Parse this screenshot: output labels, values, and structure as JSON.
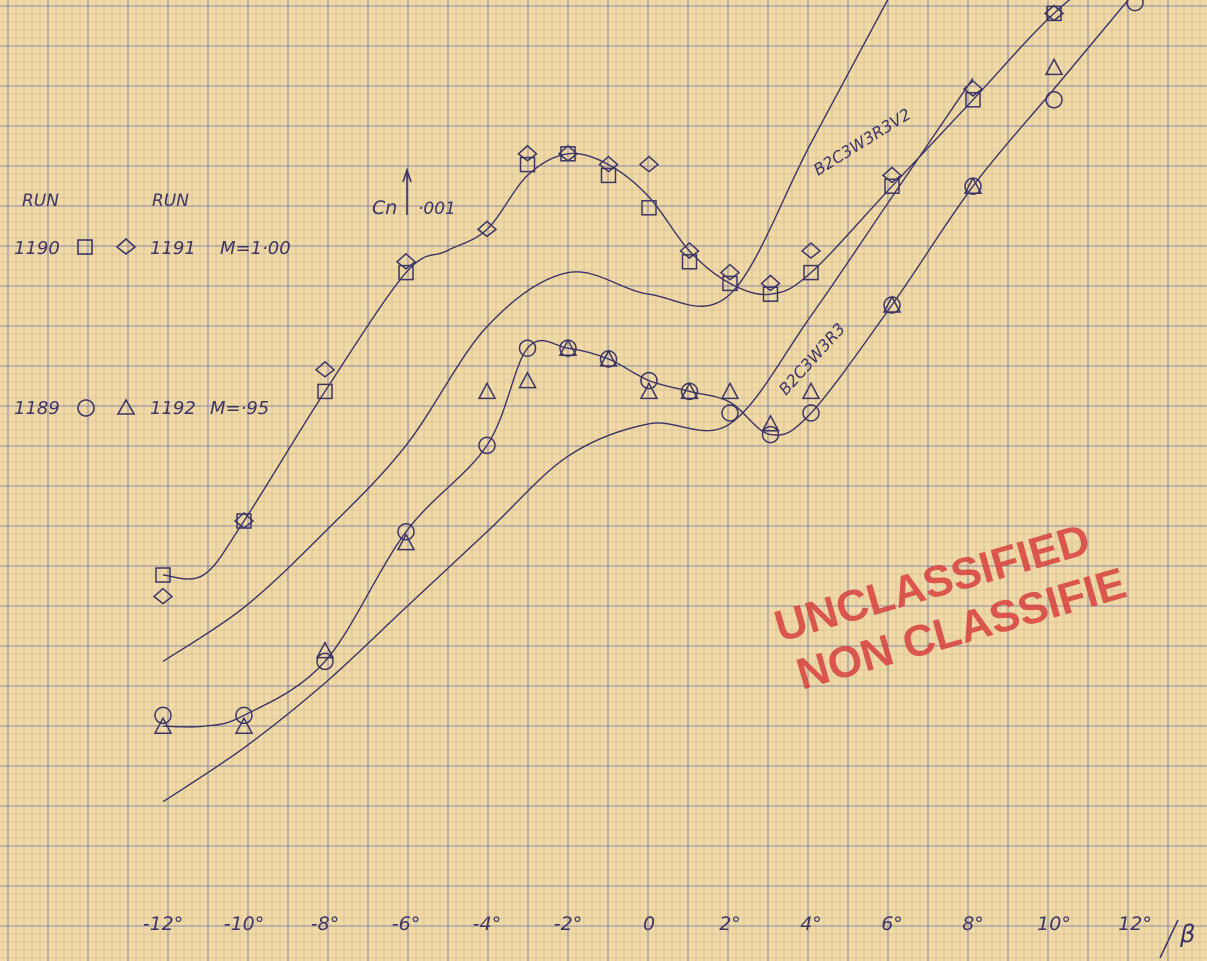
{
  "chart_data": {
    "type": "line",
    "x_tick_labels": [
      "-12°",
      "-10°",
      "-8°",
      "-6°",
      "-4°",
      "-2°",
      "0",
      "2°",
      "4°",
      "6°",
      "8°",
      "10°",
      "12°"
    ],
    "x_ticks": [
      -12,
      -10,
      -8,
      -6,
      -4,
      -2,
      0,
      2,
      4,
      6,
      8,
      10,
      12
    ],
    "xlabel": "β",
    "ylabel": "Cn",
    "ylabel_scale": "·001",
    "grid": true,
    "legend": [
      {
        "run_a": "1190",
        "marker_a": "square",
        "run_b": "1191",
        "marker_b": "diamond",
        "condition": "M=1·00"
      },
      {
        "run_a": "1189",
        "marker_a": "circle",
        "run_b": "1192",
        "marker_b": "triangle",
        "condition": "M=·95"
      }
    ],
    "legend_header_a": "RUN",
    "legend_header_b": "RUN",
    "curve_labels": [
      "B2C3W3R3V2",
      "B2C3W3R3"
    ],
    "series": [
      {
        "marker": "square",
        "condition": "M=1·00",
        "x": [
          -12,
          -10,
          -8,
          -6,
          -3,
          -2,
          -1,
          0,
          1,
          2,
          3,
          4,
          6,
          8,
          10,
          12
        ],
        "y": [
          70,
          75,
          87,
          98,
          108,
          109,
          107,
          104,
          99,
          97,
          96,
          98,
          106,
          114,
          122,
          128
        ]
      },
      {
        "marker": "diamond",
        "condition": "M=1·00",
        "x": [
          -12,
          -10,
          -8,
          -6,
          -4,
          -3,
          -2,
          -1,
          0,
          1,
          2,
          3,
          4,
          6,
          8,
          10,
          12
        ],
        "y": [
          68,
          75,
          89,
          99,
          102,
          109,
          109,
          108,
          108,
          100,
          98,
          97,
          100,
          107,
          115,
          122,
          128
        ]
      },
      {
        "marker": "circle",
        "condition": "M=·95",
        "x": [
          -12,
          -10,
          -8,
          -6,
          -4,
          -3,
          -2,
          -1,
          0,
          1,
          2,
          3,
          4,
          6,
          8,
          10,
          12
        ],
        "y": [
          57,
          57,
          62,
          74,
          82,
          91,
          91,
          90,
          88,
          87,
          85,
          83,
          85,
          95,
          106,
          114,
          123
        ]
      },
      {
        "marker": "triangle",
        "condition": "M=·95",
        "x": [
          -12,
          -10,
          -8,
          -6,
          -4,
          -3,
          -2,
          -1,
          0,
          1,
          2,
          3,
          4,
          6,
          8,
          10,
          12
        ],
        "y": [
          56,
          56,
          63,
          73,
          87,
          88,
          91,
          90,
          87,
          87,
          87,
          84,
          87,
          95,
          106,
          117,
          124
        ]
      },
      {
        "name": "B2C3W3R3V2",
        "x": [
          -12,
          -10,
          -8,
          -6,
          -4,
          -2,
          0,
          2,
          4,
          6,
          8
        ],
        "y": [
          62,
          67,
          74,
          82,
          93,
          98,
          96,
          96,
          110,
          124,
          138
        ]
      },
      {
        "name": "B2C3W3R3",
        "x": [
          -12,
          -10,
          -8,
          -6,
          -4,
          -2,
          0,
          2,
          4,
          6,
          8
        ],
        "y": [
          49,
          54,
          60,
          67,
          74,
          81,
          84,
          84,
          94,
          105,
          116
        ]
      }
    ],
    "fit_curves": [
      {
        "group": "M=1·00",
        "x": [
          -12,
          -11,
          -10,
          -8,
          -6,
          -5,
          -4,
          -3,
          -2,
          -1,
          0,
          1,
          2,
          3,
          4,
          6,
          8,
          10,
          12
        ],
        "y": [
          70,
          70,
          75,
          87,
          98,
          100,
          102,
          107,
          109,
          108,
          105,
          100,
          97,
          96,
          98,
          106,
          114,
          122,
          128
        ]
      },
      {
        "group": "M=·95",
        "x": [
          -12,
          -11,
          -10,
          -8,
          -6,
          -4,
          -3,
          -2,
          -1,
          0,
          1,
          2,
          3,
          4,
          6,
          8,
          10,
          12
        ],
        "y": [
          56,
          56,
          57,
          62,
          74,
          82,
          91,
          91,
          90,
          88,
          87,
          86,
          83,
          85,
          95,
          106,
          115,
          124
        ]
      }
    ],
    "xlim": [
      -13.5,
      13.5
    ],
    "ylim": [
      45,
      130
    ],
    "stamp": [
      "UNCLASSIFIED",
      "NON CLASSIFIE"
    ]
  }
}
